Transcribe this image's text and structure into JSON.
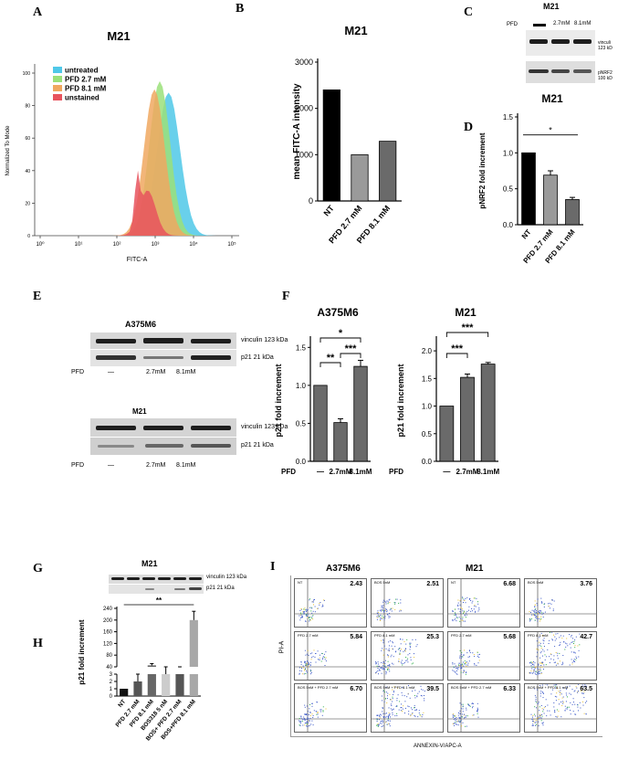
{
  "panels": {
    "A": "A",
    "B": "B",
    "C": "C",
    "D": "D",
    "E": "E",
    "F": "F",
    "G": "G",
    "H": "H",
    "I": "I"
  },
  "colors": {
    "untreated": "#4fc8e8",
    "pfd27": "#9be07a",
    "pfd81": "#f0a860",
    "unstained": "#e8545e",
    "black": "#000000",
    "gray_mid": "#9a9a9a",
    "gray_dark": "#6a6a6a",
    "gray_light": "#c8c8c8"
  },
  "wb": {
    "C": {
      "title": "M21",
      "pfd": "PFD",
      "lane2": "2.7mM",
      "lane3": "8.1mM",
      "vinc1": "vinculi",
      "vinc2": "123 kD",
      "nrf1": "pNRF2",
      "nrf2": "100 kD",
      "dash": "—"
    },
    "E": {
      "title1": "A375M6",
      "title2": "M21",
      "vinc": "vinculin 123 kDa",
      "p21": "p21 21 kDa",
      "pfd": "PFD",
      "dash": "—",
      "lane2": "2.7mM",
      "lane3": "8.1mM"
    },
    "G": {
      "title": "M21",
      "vinc": "vinculin 123 kDa",
      "p21": "p21 21 kDa"
    }
  },
  "panel_I": {
    "col1": "A375M6",
    "col2": "M21",
    "ylabel": "PI-A",
    "xlabel": "ANNEXIN-V/APC-A",
    "cells": [
      {
        "t": "NT",
        "v": "2.43"
      },
      {
        "t": "BOS 5nM",
        "v": "2.51"
      },
      {
        "t": "NT",
        "v": "6.68"
      },
      {
        "t": "BOS 5nM",
        "v": "3.76"
      },
      {
        "t": "PFD 2.7 mM",
        "v": "5.84"
      },
      {
        "t": "PFD 8.1 mM",
        "v": "25.3"
      },
      {
        "t": "PFD 2.7 mM",
        "v": "5.68"
      },
      {
        "t": "PFD 8.1 mM",
        "v": "42.7"
      },
      {
        "t": "BOS 5nM + PFD 2.7 mM",
        "v": "6.70"
      },
      {
        "t": "BOS 5nM + PFD 8.1 mM",
        "v": "39.5"
      },
      {
        "t": "BOS 5nM + PFD 2.7 mM",
        "v": "6.33"
      },
      {
        "t": "BOS 5nM + PFD 8.1 mM",
        "v": "63.5"
      }
    ]
  },
  "chart_data": [
    {
      "id": "A",
      "type": "area",
      "title": "M21",
      "xlabel": "FITC-A",
      "ylabel": "Normalized To Mode",
      "x_ticks": [
        "10⁰",
        "10¹",
        "10²",
        "10³",
        "10⁴",
        "10⁵"
      ],
      "y_ticks": [
        "0",
        "20",
        "40",
        "60",
        "80",
        "100"
      ],
      "ylim": [
        0,
        100
      ],
      "legend": [
        "untreated",
        "PFD 2.7 mM",
        "PFD 8.1 mM",
        "unstained"
      ]
    },
    {
      "id": "B",
      "type": "bar",
      "title": "M21",
      "ylabel": "mean FITC-A intensity",
      "categories": [
        "NT",
        "PFD 2.7 mM",
        "PFD 8.1 mM"
      ],
      "values": [
        2400,
        1000,
        1290
      ],
      "y_ticks": [
        "0",
        "1000",
        "2000",
        "3000"
      ],
      "ylim": [
        0,
        3000
      ]
    },
    {
      "id": "D",
      "type": "bar",
      "title": "M21",
      "ylabel": "pNRF2 fold increment",
      "categories": [
        "NT",
        "PFD 2.7 mM",
        "PFD 8.1 mM"
      ],
      "values": [
        1.0,
        0.69,
        0.35
      ],
      "errors": [
        0,
        0.06,
        0.03
      ],
      "y_ticks": [
        "0.0",
        "0.5",
        "1.0",
        "1.5"
      ],
      "ylim": [
        0,
        1.5
      ],
      "sig": "*"
    },
    {
      "id": "F1",
      "type": "bar",
      "title": "A375M6",
      "ylabel": "p21 fold increment",
      "xlabel": "PFD",
      "categories": [
        "—",
        "2.7mM",
        "8.1mM"
      ],
      "values": [
        1.0,
        0.51,
        1.25
      ],
      "errors": [
        0,
        0.05,
        0.08
      ],
      "y_ticks": [
        "0.0",
        "0.5",
        "1.0",
        "1.5"
      ],
      "ylim": [
        0,
        1.6
      ],
      "sig": [
        "*",
        "**",
        "***"
      ]
    },
    {
      "id": "F2",
      "type": "bar",
      "title": "M21",
      "ylabel": "p21 fold increment",
      "xlabel": "PFD",
      "categories": [
        "—",
        "2.7mM",
        "8.1mM"
      ],
      "values": [
        1.0,
        1.52,
        1.76
      ],
      "errors": [
        0,
        0.06,
        0.03
      ],
      "y_ticks": [
        "0.0",
        "0.5",
        "1.0",
        "1.5",
        "2.0"
      ],
      "ylim": [
        0,
        2.2
      ],
      "sig": [
        "***",
        "***"
      ]
    },
    {
      "id": "H",
      "type": "bar",
      "ylabel": "p21 fold increment",
      "categories": [
        "NT",
        "PFD 2.7 mM",
        "PFD 8.1 mM",
        "BOS318 5 nM",
        "BOS+ PFD 2.7 mM",
        "BOS+PFD 8.1 mM"
      ],
      "values": [
        1,
        2,
        45,
        3,
        38,
        200
      ],
      "errors": [
        0,
        1,
        6,
        1,
        2,
        30
      ],
      "y_ticks_low": [
        "0",
        "1",
        "2",
        "3"
      ],
      "y_ticks_high": [
        "40",
        "80",
        "120",
        "160",
        "200",
        "240"
      ],
      "sig": "**"
    }
  ]
}
